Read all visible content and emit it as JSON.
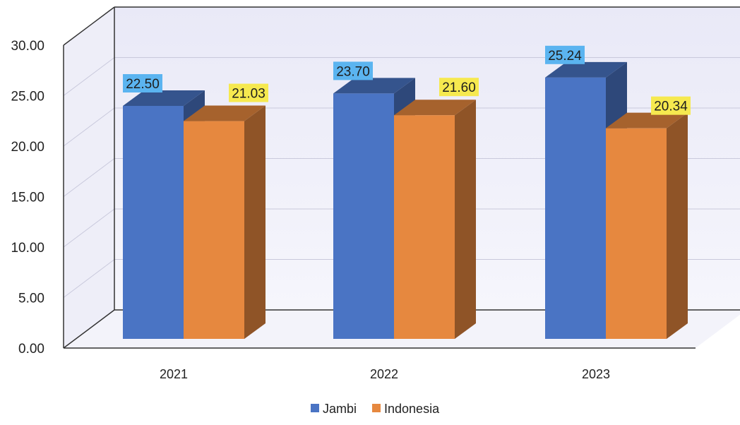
{
  "chart_data": {
    "type": "bar",
    "three_d": true,
    "categories": [
      "2021",
      "2022",
      "2023"
    ],
    "series": [
      {
        "name": "Jambi",
        "values": [
          22.5,
          23.7,
          25.24
        ],
        "color": "#4a74c4",
        "label_bg": "#5bb4f0"
      },
      {
        "name": "Indonesia",
        "values": [
          21.03,
          21.6,
          20.34
        ],
        "color": "#e6883f",
        "label_bg": "#f6e94f"
      }
    ],
    "value_labels": [
      [
        "22.50",
        "23.70",
        "25.24"
      ],
      [
        "21.03",
        "21.60",
        "20.34"
      ]
    ],
    "y_ticks": [
      "0.00",
      "5.00",
      "10.00",
      "15.00",
      "20.00",
      "25.00",
      "30.00"
    ],
    "ylim": [
      0,
      30
    ],
    "grid": true,
    "legend_position": "bottom"
  }
}
